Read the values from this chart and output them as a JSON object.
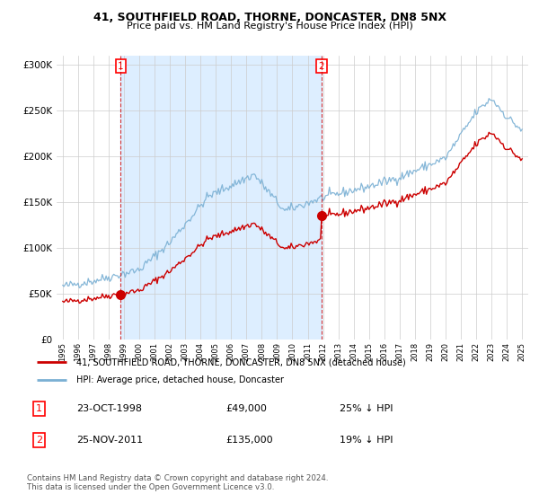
{
  "title": "41, SOUTHFIELD ROAD, THORNE, DONCASTER, DN8 5NX",
  "subtitle": "Price paid vs. HM Land Registry's House Price Index (HPI)",
  "legend_line1": "41, SOUTHFIELD ROAD, THORNE, DONCASTER, DN8 5NX (detached house)",
  "legend_line2": "HPI: Average price, detached house, Doncaster",
  "transaction1_date": "23-OCT-1998",
  "transaction1_price": "£49,000",
  "transaction1_hpi": "25% ↓ HPI",
  "transaction2_date": "25-NOV-2011",
  "transaction2_price": "£135,000",
  "transaction2_hpi": "19% ↓ HPI",
  "footnote": "Contains HM Land Registry data © Crown copyright and database right 2024.\nThis data is licensed under the Open Government Licence v3.0.",
  "property_color": "#cc0000",
  "hpi_color": "#7ab0d4",
  "vline_color": "#cc0000",
  "marker_color": "#cc0000",
  "shade_color": "#ddeeff",
  "ylim": [
    0,
    310000
  ],
  "yticks": [
    0,
    50000,
    100000,
    150000,
    200000,
    250000,
    300000
  ],
  "background_color": "#ffffff",
  "grid_color": "#cccccc",
  "price_t1": 49000,
  "price_t2": 135000,
  "t1_year": 1998.79,
  "t2_year": 2011.9
}
